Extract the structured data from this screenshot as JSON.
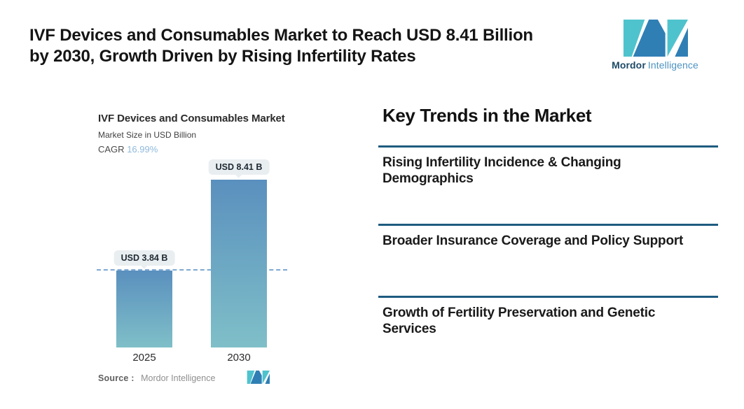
{
  "header": {
    "title_line1": "IVF Devices and Consumables Market to Reach USD 8.41 Billion",
    "title_line2": "by 2030, Growth Driven by Rising Infertility Rates"
  },
  "brand": {
    "name_bold": "Mordor",
    "name_light": "Intelligence"
  },
  "chart_data": {
    "type": "bar",
    "title": "IVF Devices and Consumables Market",
    "subtitle": "Market Size in USD Billion",
    "cagr_label": "CAGR",
    "cagr_value": "16.99%",
    "x": [
      "2025",
      "2030"
    ],
    "values": [
      3.84,
      8.41
    ],
    "labels": [
      "USD 3.84 B",
      "USD 8.41 B"
    ],
    "ylabel": "Market Size in USD Billion",
    "ylim": [
      0,
      8.41
    ],
    "dashed_line_at": 3.84,
    "grid": "off",
    "source_label": "Source :",
    "source_value": "Mordor Intelligence"
  },
  "trends": {
    "heading": "Key Trends in the Market",
    "items": [
      {
        "line1": "Rising Infertility Incidence & Changing",
        "line2": "Demographics"
      },
      {
        "line1": "Broader Insurance Coverage and Policy Support",
        "line2": ""
      },
      {
        "line1": "Growth of Fertility Preservation and Genetic",
        "line2": "Services"
      }
    ]
  },
  "theme": {
    "title_color": "#141414",
    "rule_color": "#1e5b80",
    "bar_gradient_top": "#5a90be",
    "bar_gradient_bottom": "#7fbfc8",
    "dash_color": "#7fa9d3",
    "pill_bg": "#e9eef1",
    "pill_text": "#1f2a33",
    "cagr_value_color": "#8fb9dc",
    "logo_teal": "#4fc3cd",
    "logo_blue": "#2f7fb5",
    "brand_dark": "#1d4a66",
    "brand_light": "#4e93c0"
  }
}
